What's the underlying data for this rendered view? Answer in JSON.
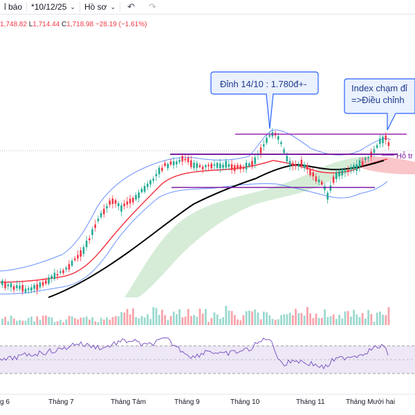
{
  "toolbar": {
    "indicators_label": "ỉ báo",
    "date_label": "*10/12/25",
    "profile_label": "Hồ sơ"
  },
  "ohlc": {
    "h": "1,748.82",
    "l_label": "L",
    "l": "1,714.44",
    "c_label": "C",
    "c": "1,718.98",
    "change": "−28.19",
    "change_pct": "(−1.61%)"
  },
  "annotations": {
    "peak": "Đỉnh 14/10 : 1.780đ+-",
    "index_line1": "Index chạm đỉ",
    "index_line2": "=>Điều chỉnh",
    "support": "Hỗ tr"
  },
  "time_axis": [
    "g 6",
    "Tháng 7",
    "Tháng Tám",
    "Tháng 9",
    "Tháng 10",
    "Tháng 11",
    "Tháng Mười hai"
  ],
  "colors": {
    "up": "#22ab94",
    "down": "#f23645",
    "annotation": "#2962ff",
    "purple": "#9c27b0",
    "bollinger": "#2962ff",
    "ma_fast": "#f23645",
    "ma_slow": "#000000",
    "cloud_up": "#a5d6a7",
    "cloud_down": "#f7b1b5",
    "rsi_band": "#ede7f6"
  }
}
